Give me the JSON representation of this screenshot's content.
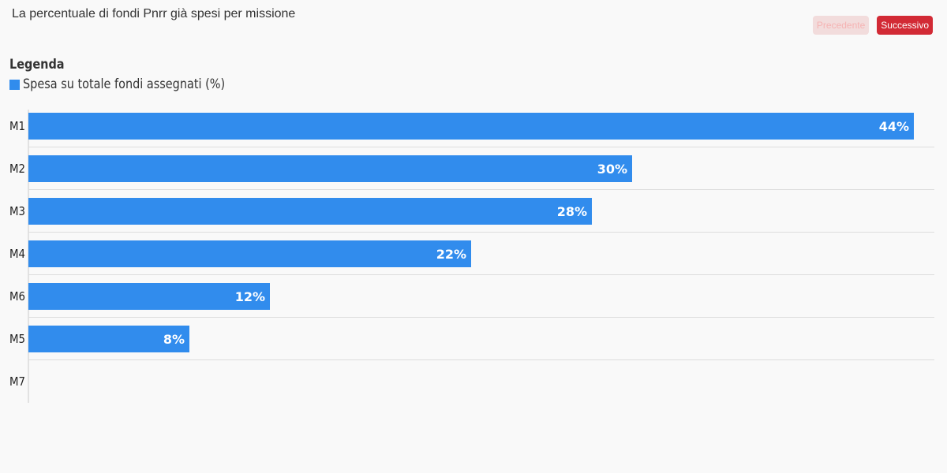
{
  "header": {
    "title": "La percentuale di fondi Pnrr già spesi per missione"
  },
  "nav": {
    "prev_label": "Precedente",
    "next_label": "Successivo"
  },
  "legend": {
    "title": "Legenda",
    "items": [
      {
        "label": "Spesa su totale fondi assegnati (%)",
        "color": "#318ced"
      }
    ]
  },
  "chart_data": {
    "type": "bar",
    "orientation": "horizontal",
    "categories": [
      "M1",
      "M2",
      "M3",
      "M4",
      "M6",
      "M5",
      "M7"
    ],
    "series": [
      {
        "name": "Spesa su totale fondi assegnati (%)",
        "values": [
          44,
          30,
          28,
          22,
          12,
          8,
          0
        ],
        "labels": [
          "44%",
          "30%",
          "28%",
          "22%",
          "12%",
          "8%",
          ""
        ],
        "color": "#318ced"
      }
    ],
    "xlim": [
      0,
      45
    ],
    "grid": false
  }
}
